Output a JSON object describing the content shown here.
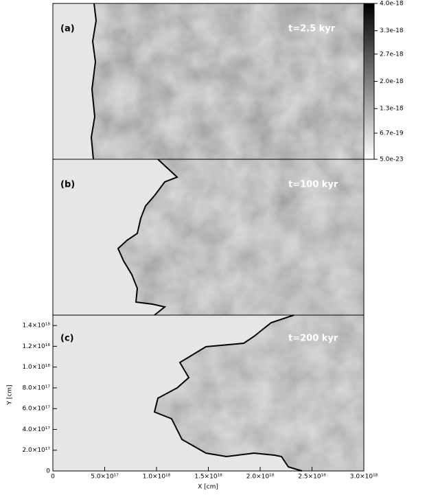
{
  "chart_data": {
    "type": "density-panels",
    "x_label": "X [cm]",
    "y_label": "Y [cm]",
    "xlim": [
      0,
      3e+18
    ],
    "xticks": [
      0,
      {
        "value": 5e+17,
        "label": "5.0×10¹⁷"
      },
      {
        "value": 1e+18,
        "label": "1.0×10¹⁸"
      },
      {
        "value": 1.5e+18,
        "label": "1.5×10¹⁸"
      },
      {
        "value": 2e+18,
        "label": "2.0×10¹⁸"
      },
      {
        "value": 2.5e+18,
        "label": "2.5×10¹⁸"
      },
      {
        "value": 3e+18,
        "label": "3.0×10¹⁸"
      }
    ],
    "ylim": [
      0,
      1.5e+18
    ],
    "yticks": [
      0,
      {
        "value": 2e+17,
        "label": "2.0×10¹⁷"
      },
      {
        "value": 4e+17,
        "label": "4.0×10¹⁷"
      },
      {
        "value": 6e+17,
        "label": "6.0×10¹⁷"
      },
      {
        "value": 8e+17,
        "label": "8.0×10¹⁷"
      },
      {
        "value": 1e+18,
        "label": "1.0×10¹⁸"
      },
      {
        "value": 1.2e+18,
        "label": "1.2×10¹⁸"
      },
      {
        "value": 1.4e+18,
        "label": "1.4×10¹⁸"
      }
    ],
    "panels": [
      {
        "label": "(a)",
        "time": "t=2.5 kyr"
      },
      {
        "label": "(b)",
        "time": "t=100 kyr"
      },
      {
        "label": "(c)",
        "time": "t=200 kyr"
      }
    ],
    "colorbar": {
      "lim": [
        5e-23,
        4e-18
      ],
      "ticks": [
        {
          "value": 5e-23,
          "label": "5.0e-23"
        },
        {
          "value": 6.7e-19,
          "label": "6.7e-19"
        },
        {
          "value": 1.3e-18,
          "label": "1.3e-18"
        },
        {
          "value": 2e-18,
          "label": "2.0e-18"
        },
        {
          "value": 2.7e-18,
          "label": "2.7e-18"
        },
        {
          "value": 3.3e-18,
          "label": "3.3e-18"
        },
        {
          "value": 4e-18,
          "label": "4.0e-18"
        }
      ]
    }
  }
}
